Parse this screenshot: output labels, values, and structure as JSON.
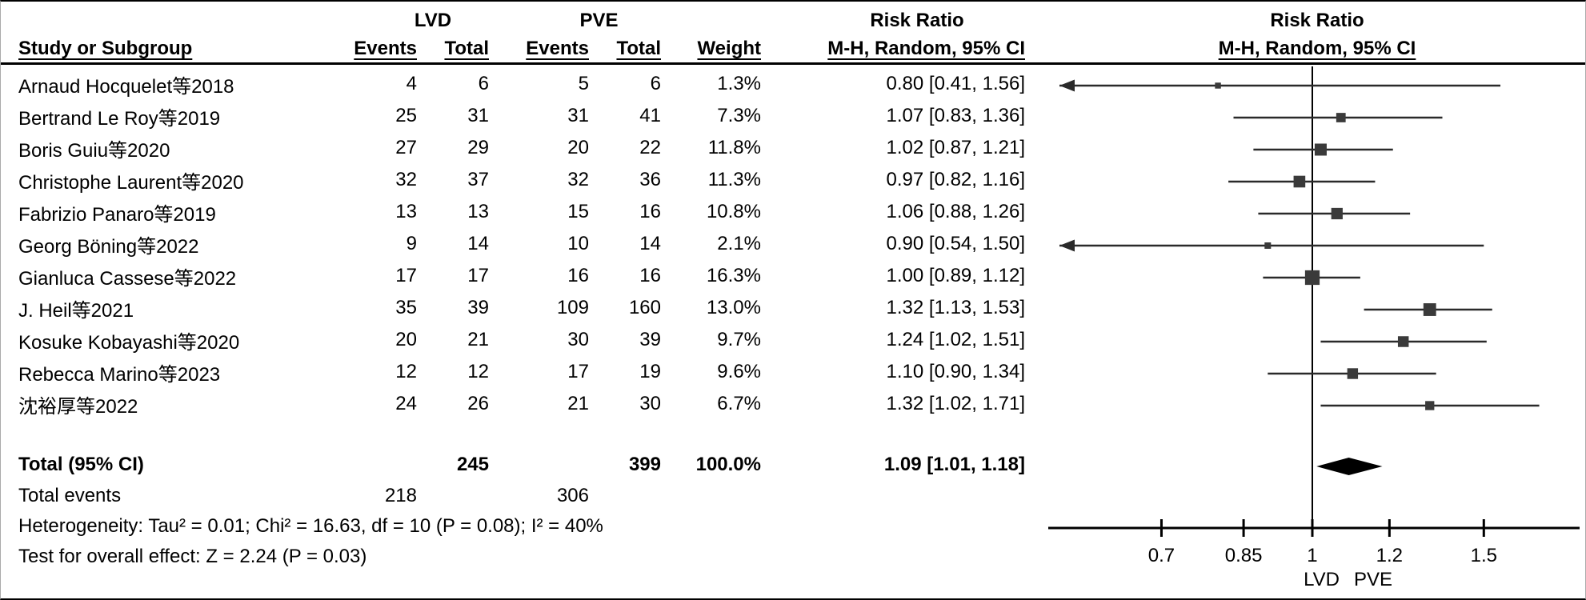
{
  "header": {
    "group_lvd": "LVD",
    "group_pve": "PVE",
    "group_rr_text": "Risk Ratio",
    "group_rr_plot": "Risk Ratio",
    "col_study": "Study or Subgroup",
    "col_events_lvd": "Events",
    "col_total_lvd": "Total",
    "col_events_pve": "Events",
    "col_total_pve": "Total",
    "col_weight": "Weight",
    "col_method_text": "M-H, Random, 95% CI",
    "col_method_plot": "M-H, Random, 95% CI"
  },
  "chart_data": {
    "type": "forest",
    "scale": "log10",
    "effect_measure": "Risk Ratio",
    "method": "M-H, Random, 95% CI",
    "axis_ticks": [
      0.7,
      0.85,
      1,
      1.2,
      1.5
    ],
    "axis_range": [
      0.55,
      1.86
    ],
    "null_line": 1,
    "favours_left": "LVD",
    "favours_right": "PVE",
    "colors": {
      "line": "#2a2a2a",
      "square": "#3a3a3a",
      "diamond": "#000000",
      "axis": "#000000"
    },
    "studies": [
      {
        "name": "Arnaud Hocquelet等2018",
        "lvd_events": 4,
        "lvd_total": 6,
        "pve_events": 5,
        "pve_total": 6,
        "weight": 1.3,
        "weight_label": "1.3%",
        "rr": 0.8,
        "ci_low": 0.41,
        "ci_high": 1.56,
        "rr_label": "0.80 [0.41, 1.56]"
      },
      {
        "name": "Bertrand Le Roy等2019",
        "lvd_events": 25,
        "lvd_total": 31,
        "pve_events": 31,
        "pve_total": 41,
        "weight": 7.3,
        "weight_label": "7.3%",
        "rr": 1.07,
        "ci_low": 0.83,
        "ci_high": 1.36,
        "rr_label": "1.07 [0.83, 1.36]"
      },
      {
        "name": "Boris Guiu等2020",
        "lvd_events": 27,
        "lvd_total": 29,
        "pve_events": 20,
        "pve_total": 22,
        "weight": 11.8,
        "weight_label": "11.8%",
        "rr": 1.02,
        "ci_low": 0.87,
        "ci_high": 1.21,
        "rr_label": "1.02 [0.87, 1.21]"
      },
      {
        "name": "Christophe Laurent等2020",
        "lvd_events": 32,
        "lvd_total": 37,
        "pve_events": 32,
        "pve_total": 36,
        "weight": 11.3,
        "weight_label": "11.3%",
        "rr": 0.97,
        "ci_low": 0.82,
        "ci_high": 1.16,
        "rr_label": "0.97 [0.82, 1.16]"
      },
      {
        "name": "Fabrizio Panaro等2019",
        "lvd_events": 13,
        "lvd_total": 13,
        "pve_events": 15,
        "pve_total": 16,
        "weight": 10.8,
        "weight_label": "10.8%",
        "rr": 1.06,
        "ci_low": 0.88,
        "ci_high": 1.26,
        "rr_label": "1.06 [0.88, 1.26]"
      },
      {
        "name": "Georg Böning等2022",
        "lvd_events": 9,
        "lvd_total": 14,
        "pve_events": 10,
        "pve_total": 14,
        "weight": 2.1,
        "weight_label": "2.1%",
        "rr": 0.9,
        "ci_low": 0.54,
        "ci_high": 1.5,
        "rr_label": "0.90 [0.54, 1.50]"
      },
      {
        "name": "Gianluca Cassese等2022",
        "lvd_events": 17,
        "lvd_total": 17,
        "pve_events": 16,
        "pve_total": 16,
        "weight": 16.3,
        "weight_label": "16.3%",
        "rr": 1.0,
        "ci_low": 0.89,
        "ci_high": 1.12,
        "rr_label": "1.00 [0.89, 1.12]"
      },
      {
        "name": "J. Heil等2021",
        "lvd_events": 35,
        "lvd_total": 39,
        "pve_events": 109,
        "pve_total": 160,
        "weight": 13.0,
        "weight_label": "13.0%",
        "rr": 1.32,
        "ci_low": 1.13,
        "ci_high": 1.53,
        "rr_label": "1.32 [1.13, 1.53]"
      },
      {
        "name": "Kosuke Kobayashi等2020",
        "lvd_events": 20,
        "lvd_total": 21,
        "pve_events": 30,
        "pve_total": 39,
        "weight": 9.7,
        "weight_label": "9.7%",
        "rr": 1.24,
        "ci_low": 1.02,
        "ci_high": 1.51,
        "rr_label": "1.24 [1.02, 1.51]"
      },
      {
        "name": "Rebecca Marino等2023",
        "lvd_events": 12,
        "lvd_total": 12,
        "pve_events": 17,
        "pve_total": 19,
        "weight": 9.6,
        "weight_label": "9.6%",
        "rr": 1.1,
        "ci_low": 0.9,
        "ci_high": 1.34,
        "rr_label": "1.10 [0.90, 1.34]"
      },
      {
        "name": "沈裕厚等2022",
        "lvd_events": 24,
        "lvd_total": 26,
        "pve_events": 21,
        "pve_total": 30,
        "weight": 6.7,
        "weight_label": "6.7%",
        "rr": 1.32,
        "ci_low": 1.02,
        "ci_high": 1.71,
        "rr_label": "1.32 [1.02, 1.71]"
      }
    ],
    "total": {
      "label": "Total (95% CI)",
      "lvd_total": 245,
      "pve_total": 399,
      "weight_label": "100.0%",
      "rr": 1.09,
      "ci_low": 1.01,
      "ci_high": 1.18,
      "rr_label": "1.09 [1.01, 1.18]"
    },
    "total_events": {
      "label": "Total events",
      "lvd": 218,
      "pve": 306
    },
    "heterogeneity": "Heterogeneity: Tau² = 0.01; Chi² = 16.63, df = 10 (P = 0.08); I² = 40%",
    "overall_effect": "Test for overall effect: Z = 2.24 (P = 0.03)"
  }
}
